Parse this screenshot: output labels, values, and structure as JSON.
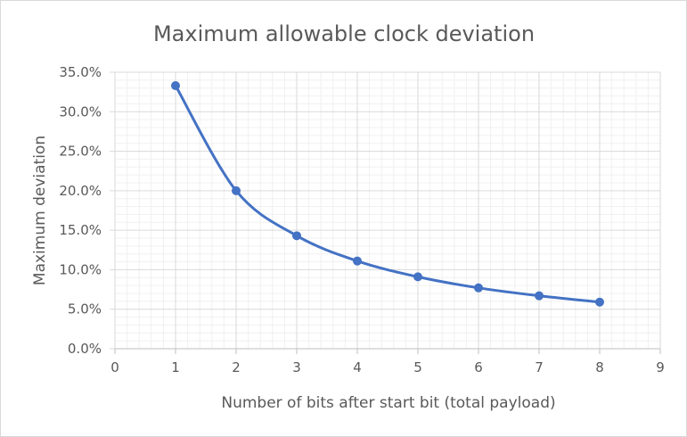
{
  "chart_data": {
    "type": "line",
    "title": "Maximum allowable clock deviation",
    "xlabel": "Number of bits after start bit (total payload)",
    "ylabel": "Maximum deviation",
    "xlim": [
      0,
      9
    ],
    "ylim": [
      0,
      0.35
    ],
    "x_ticks": [
      "0",
      "1",
      "2",
      "3",
      "4",
      "5",
      "6",
      "7",
      "8",
      "9"
    ],
    "y_ticks": [
      "0.0%",
      "5.0%",
      "10.0%",
      "15.0%",
      "20.0%",
      "25.0%",
      "30.0%",
      "35.0%"
    ],
    "grid": {
      "major": true,
      "minor": true
    },
    "smooth": true,
    "series": [
      {
        "x": [
          1,
          2,
          3,
          4,
          5,
          6,
          7,
          8
        ],
        "values": [
          0.333,
          0.2,
          0.143,
          0.111,
          0.091,
          0.077,
          0.067,
          0.059
        ],
        "color": "#4472c4"
      }
    ]
  }
}
